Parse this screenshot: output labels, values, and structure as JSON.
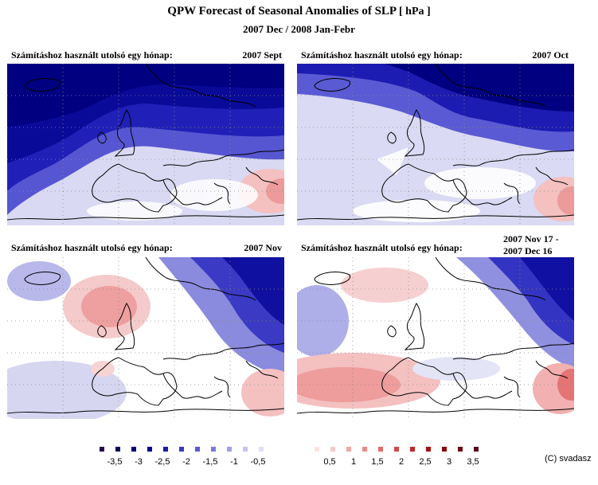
{
  "header": {
    "title_prefix": "QPW Forecast of Seasonal Anomalies of",
    "title_var": "SLP",
    "title_unit": "[ hPa ]",
    "subtitle": "2007 Dec / 2008 Jan-Febr"
  },
  "panels": [
    {
      "label": "Számításhoz használt utolsó egy hónap:",
      "date": "2007 Sept",
      "pattern": "neg-strong"
    },
    {
      "label": "Számításhoz használt utolsó egy hónap:",
      "date": "2007 Oct",
      "pattern": "neg-north"
    },
    {
      "label": "Számításhoz használt utolsó egy hónap:",
      "date": "2007 Nov",
      "pattern": "uk-high"
    },
    {
      "label": "Számításhoz használt utolsó egy hónap:",
      "date": "2007 Nov 17 -\n2007 Dec 16",
      "pattern": "atl-high"
    }
  ],
  "legend": {
    "negative": {
      "colors": [
        "#2a0a4e",
        "#0b0b55",
        "#000070",
        "#08088a",
        "#1c1ca8",
        "#3a3ac0",
        "#5a5acf",
        "#7b7bd9",
        "#a0a0e4",
        "#c4c4ee",
        "#dedef5"
      ],
      "ticks": [
        "-3,5",
        "-3",
        "-2,5",
        "-2",
        "-1,5",
        "-1",
        "-0,5"
      ]
    },
    "positive": {
      "colors": [
        "#fae4e4",
        "#f6c8c8",
        "#f2a8a8",
        "#ec8a8a",
        "#e26a6a",
        "#d24848",
        "#c02828",
        "#a81010",
        "#8c0808",
        "#6e0a18",
        "#580a1e"
      ],
      "ticks": [
        "0,5",
        "1",
        "1,5",
        "2",
        "2,5",
        "3",
        "3,5"
      ]
    }
  },
  "credit": "(C) svadasz"
}
